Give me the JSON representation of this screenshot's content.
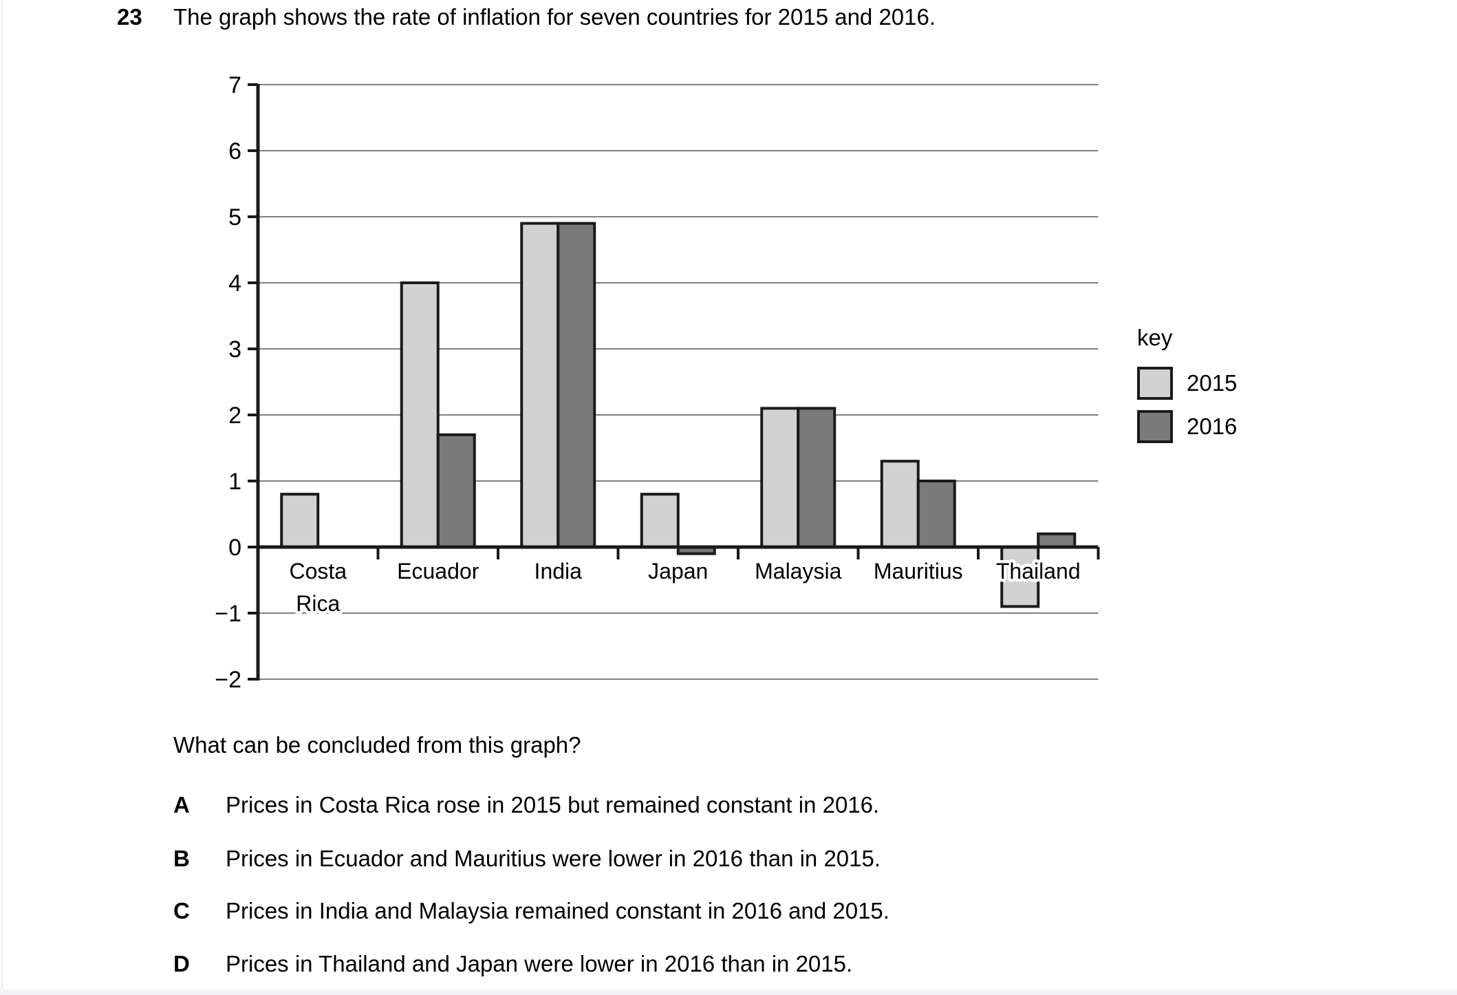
{
  "page": {
    "question_number": "23",
    "question_intro": "The graph shows the rate of inflation for seven countries for 2015 and 2016.",
    "question_prompt": "What can be concluded from this graph?",
    "options": [
      {
        "letter": "A",
        "text": "Prices in Costa Rica rose in 2015 but remained constant in 2016."
      },
      {
        "letter": "B",
        "text": "Prices in Ecuador and Mauritius were lower in 2016 than in 2015."
      },
      {
        "letter": "C",
        "text": "Prices in India and Malaysia remained constant in 2016 and 2015."
      },
      {
        "letter": "D",
        "text": "Prices in Thailand and Japan were lower in 2016 than in 2015."
      }
    ]
  },
  "chart_data": {
    "type": "bar",
    "title": "",
    "xlabel": "",
    "ylabel": "",
    "categories": [
      "Costa Rica",
      "Ecuador",
      "India",
      "Japan",
      "Malaysia",
      "Mauritius",
      "Thailand"
    ],
    "series": [
      {
        "name": "2015",
        "color": "#d2d2d2",
        "values": [
          0.8,
          4.0,
          4.9,
          0.8,
          2.1,
          1.3,
          -0.9
        ]
      },
      {
        "name": "2016",
        "color": "#7a7a7a",
        "values": [
          null,
          1.7,
          4.9,
          -0.1,
          2.1,
          1.0,
          0.2
        ]
      }
    ],
    "ylim": [
      -2,
      7
    ],
    "yticks": [
      7,
      6,
      5,
      4,
      3,
      2,
      1,
      0,
      -1,
      -2
    ],
    "grid": true,
    "legend_title": "key",
    "legend_position": "right",
    "bar_border_color": "#1a1a1a",
    "gridline_color": "#808080"
  }
}
